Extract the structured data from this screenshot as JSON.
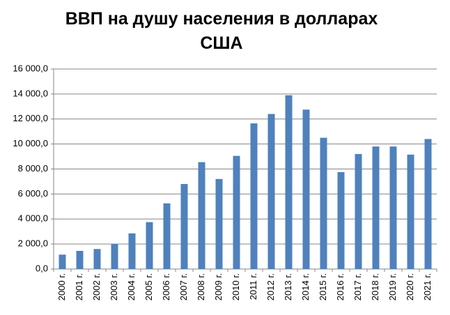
{
  "chart_data": {
    "type": "bar",
    "title": "ВВП на душу населения в долларах США",
    "categories": [
      "2000 г.",
      "2001 г.",
      "2002 г.",
      "2003 г.",
      "2004 г.",
      "2005 г.",
      "2006 г.",
      "2007 г.",
      "2008 г.",
      "2009 г.",
      "2010 г.",
      "2011 г.",
      "2012 г.",
      "2013 г.",
      "2014 г.",
      "2015 г.",
      "2016 г.",
      "2017 г.",
      "2018 г.",
      "2019 г.",
      "2020 г.",
      "2021 г."
    ],
    "values": [
      1150,
      1450,
      1600,
      2000,
      2850,
      3750,
      5250,
      6800,
      8550,
      7200,
      9050,
      11650,
      12400,
      13900,
      12750,
      10500,
      7750,
      9200,
      9800,
      9800,
      9150,
      10400
    ],
    "color": "#4f81bd",
    "ylim": [
      0,
      16000
    ],
    "yticks": [
      {
        "value": 0,
        "label": "0,0"
      },
      {
        "value": 2000,
        "label": "2 000,0"
      },
      {
        "value": 4000,
        "label": "4 000,0"
      },
      {
        "value": 6000,
        "label": "6 000,0"
      },
      {
        "value": 8000,
        "label": "8 000,0"
      },
      {
        "value": 10000,
        "label": "10 000,0"
      },
      {
        "value": 12000,
        "label": "12 000,0"
      },
      {
        "value": 14000,
        "label": "14 000,0"
      },
      {
        "value": 16000,
        "label": "16 000,0"
      }
    ],
    "grid": true
  }
}
